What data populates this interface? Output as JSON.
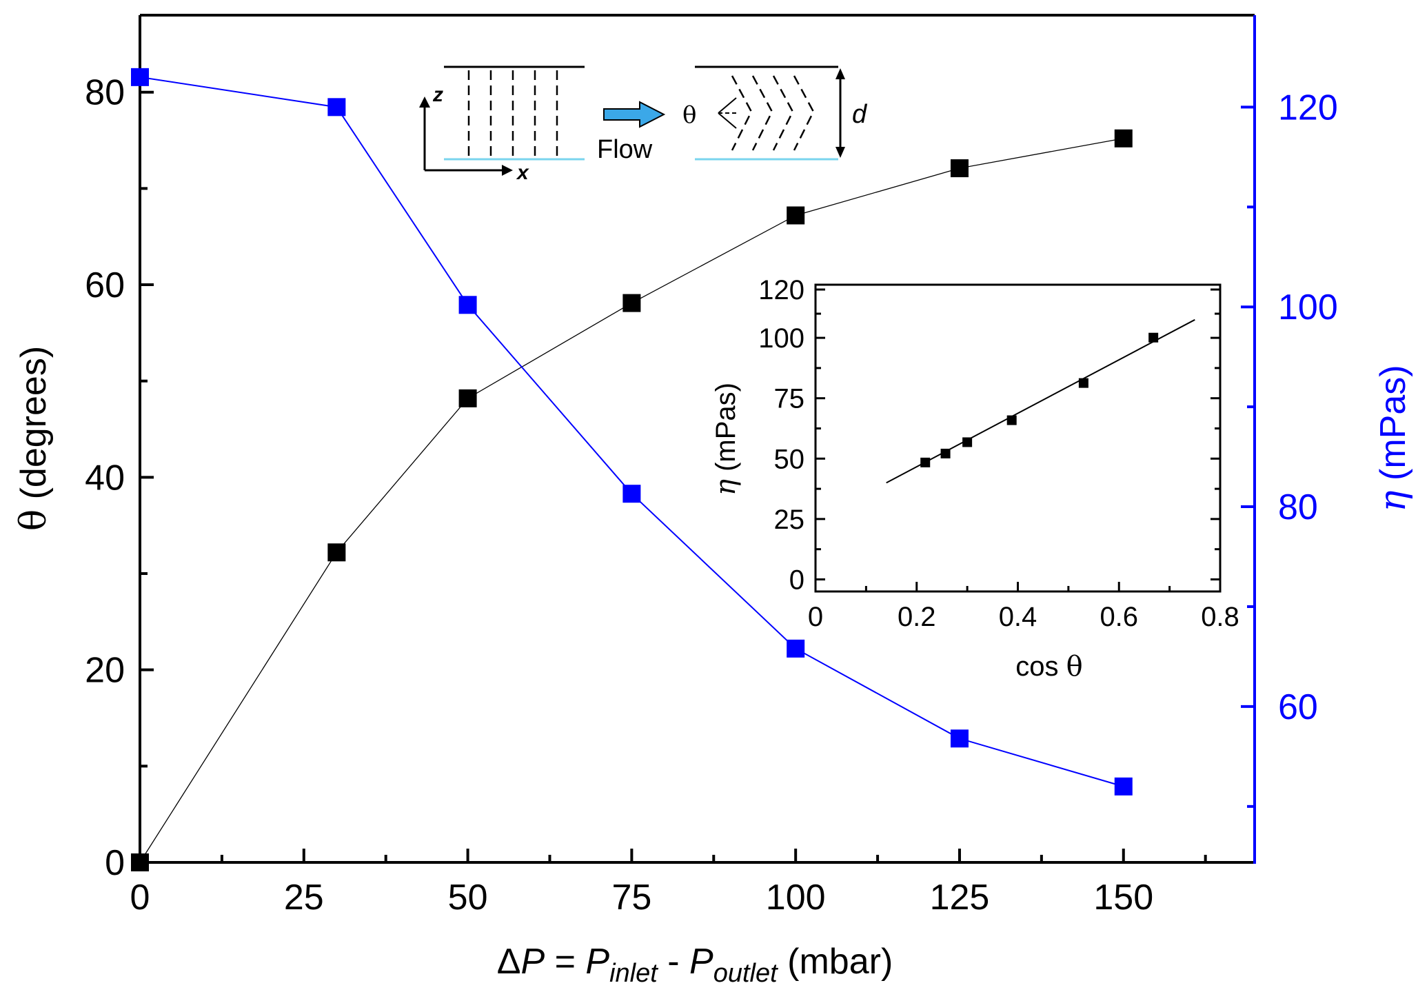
{
  "chart_data": [
    {
      "type": "scatter",
      "x_label": {
        "prefix": "Δ",
        "P": "P",
        "eq": " = ",
        "sub_inlet": "inlet",
        "minus": " - ",
        "sub_outlet": "outlet",
        "unit": " (mbar)"
      },
      "y_label": {
        "symbol": "θ",
        "rest": " (degrees)"
      },
      "y2_label": {
        "symbol": "η",
        "rest": " (mPas)"
      },
      "xlim": [
        0,
        170
      ],
      "ylim": [
        0,
        88
      ],
      "y2lim": [
        44.4,
        129.2
      ],
      "x_major_ticks": [
        0,
        25,
        50,
        75,
        100,
        125,
        150
      ],
      "x_tick_labels": [
        "0",
        "25",
        "50",
        "75",
        "100",
        "125",
        "150"
      ],
      "x_minor_ticks": [
        12.5,
        37.5,
        62.5,
        87.5,
        112.5,
        137.5,
        162.5
      ],
      "y_major_ticks": [
        0,
        20,
        40,
        60,
        80
      ],
      "y_tick_labels": [
        "0",
        "20",
        "40",
        "60",
        "80"
      ],
      "y_minor_ticks": [
        10,
        30,
        50,
        70
      ],
      "y2_major_ticks": [
        60,
        80,
        100,
        120
      ],
      "y2_tick_labels": [
        "60",
        "80",
        "100",
        "120"
      ],
      "y2_minor_ticks": [
        50,
        70,
        90,
        110
      ],
      "series": [
        {
          "name": "θ",
          "axis": "left",
          "color": "#000000",
          "x": [
            0,
            30,
            50,
            75,
            100,
            125,
            150
          ],
          "y": [
            0,
            32.2,
            48.2,
            58.1,
            67.2,
            72.1,
            75.2
          ]
        },
        {
          "name": "η",
          "axis": "right",
          "color": "#0000ff",
          "x": [
            0,
            30,
            50,
            75,
            100,
            125,
            150
          ],
          "y": [
            123,
            120,
            100.2,
            81.3,
            65.8,
            56.8,
            52
          ]
        }
      ]
    },
    {
      "type": "scatter",
      "role": "inset",
      "x_label": {
        "text": "cos ",
        "symbol": "θ"
      },
      "y_label": {
        "symbol": "η",
        "rest": " (mPas)"
      },
      "xlim": [
        0,
        0.8
      ],
      "ylim": [
        -5,
        122
      ],
      "x_major_ticks": [
        0,
        0.2,
        0.4,
        0.6,
        0.8
      ],
      "x_tick_labels": [
        "0",
        "0.2",
        "0.4",
        "0.6",
        "0.8"
      ],
      "x_minor_ticks": [
        0.1,
        0.3,
        0.5,
        0.7
      ],
      "y_major_ticks": [
        0,
        25,
        50,
        75,
        100,
        120
      ],
      "y_tick_labels": [
        "0",
        "25",
        "50",
        "75",
        "100",
        "120"
      ],
      "y_minor_ticks": [
        12.5,
        37.5,
        62.5,
        87.5,
        110
      ],
      "series": [
        {
          "name": "data",
          "color": "#000000",
          "x": [
            0.217,
            0.257,
            0.3,
            0.388,
            0.53,
            0.668
          ],
          "y": [
            48.4,
            52.1,
            56.8,
            65.9,
            81.3,
            100.1
          ]
        }
      ],
      "fit_line": {
        "x": [
          0.14,
          0.75
        ],
        "y": [
          40,
          107.5
        ]
      }
    }
  ],
  "schematic": {
    "axis_z": "z",
    "axis_x": "x",
    "flow_label": "Flow",
    "angle_label": "θ",
    "thickness_label": "d",
    "arrow_color": "#3ba8e8",
    "substrate_color": "#7ad4ee"
  }
}
